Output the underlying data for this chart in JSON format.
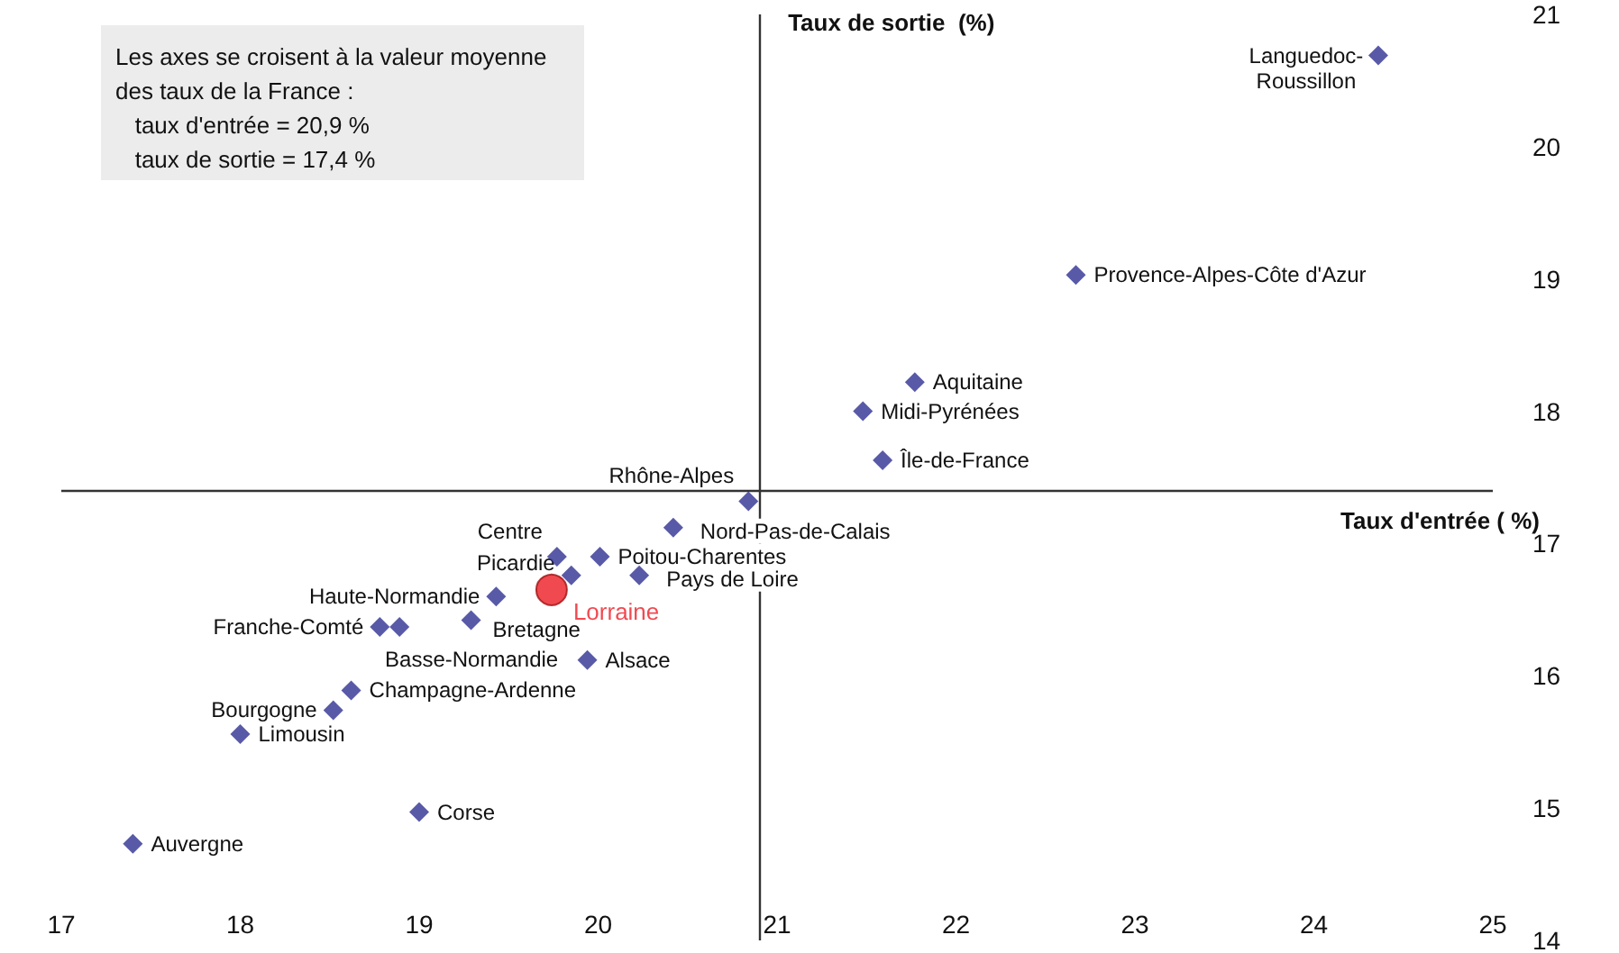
{
  "chart_data": {
    "type": "scatter",
    "xlabel": "Taux d'entrée ( %)",
    "ylabel": "Taux de sortie  (%)",
    "xlim": [
      17,
      25
    ],
    "xticks": [
      17,
      18,
      19,
      20,
      21,
      22,
      23,
      24,
      25
    ],
    "ylim": [
      14,
      21
    ],
    "yticks": [
      14,
      15,
      16,
      17,
      18,
      19,
      20,
      21
    ],
    "grid": false,
    "legend": false,
    "ref_lines": [
      {
        "axis": "x",
        "value": 20.9,
        "color": "#333333"
      },
      {
        "axis": "y",
        "value": 17.4,
        "color": "#333333"
      }
    ],
    "series": [
      {
        "color": "#2e3192",
        "marker": "diamond",
        "x": [
          24.36,
          22.67,
          21.77,
          21.48,
          21.59,
          20.84,
          20.42,
          19.77,
          20.01,
          19.85,
          20.23,
          19.43,
          19.29,
          18.78,
          18.89,
          19.94,
          18.62,
          18.52,
          18.0,
          19.0,
          17.4
        ],
        "values": [
          20.69,
          19.03,
          18.22,
          18.0,
          17.63,
          17.32,
          17.12,
          16.9,
          16.9,
          16.76,
          16.76,
          16.6,
          16.42,
          16.37,
          16.37,
          16.12,
          15.89,
          15.74,
          15.56,
          14.97,
          14.73
        ]
      },
      {
        "name": "Lorraine",
        "color": "#ed1c24",
        "marker": "circle",
        "x": [
          19.74
        ],
        "values": [
          16.65
        ]
      }
    ],
    "annotations": [
      "Les axes se croisent à la valeur moyenne\ndes taux de la France :\n   taux d'entrée = 20,9 %\n   taux de sortie = 17,4 %",
      {
        "text": "Languedoc-\nRoussillon",
        "x": 24.36,
        "y": 20.69
      },
      {
        "text": "Provence-Alpes-Côte d'Azur",
        "x": 22.67,
        "y": 19.03
      },
      {
        "text": "Aquitaine",
        "x": 21.77,
        "y": 18.22
      },
      {
        "text": "Midi-Pyrénées",
        "x": 21.48,
        "y": 18.0
      },
      {
        "text": "Île-de-France",
        "x": 21.59,
        "y": 17.63
      },
      {
        "text": "Rhône-Alpes",
        "x": 20.84,
        "y": 17.32
      },
      {
        "text": "Nord-Pas-de-Calais",
        "x": 20.42,
        "y": 17.12
      },
      {
        "text": "Centre",
        "x": 19.77,
        "y": 16.9
      },
      {
        "text": "Poitou-Charentes",
        "x": 20.01,
        "y": 16.9
      },
      {
        "text": "Picardie",
        "x": 19.85,
        "y": 16.76
      },
      {
        "text": "Pays de Loire",
        "x": 20.23,
        "y": 16.76
      },
      {
        "text": "Haute-Normandie",
        "x": 19.43,
        "y": 16.6
      },
      {
        "text": "Bretagne",
        "x": 19.29,
        "y": 16.42
      },
      {
        "text": "Franche-Comté",
        "x": 18.78,
        "y": 16.37
      },
      {
        "text": "Basse-Normandie",
        "x": 18.89,
        "y": 16.37
      },
      {
        "text": "Alsace",
        "x": 19.94,
        "y": 16.12
      },
      {
        "text": "Champagne-Ardenne",
        "x": 18.62,
        "y": 15.89
      },
      {
        "text": "Bourgogne",
        "x": 18.52,
        "y": 15.74
      },
      {
        "text": "Limousin",
        "x": 18.0,
        "y": 15.56
      },
      {
        "text": "Corse",
        "x": 19.0,
        "y": 14.97
      },
      {
        "text": "Auvergne",
        "x": 17.4,
        "y": 14.73
      }
    ]
  }
}
